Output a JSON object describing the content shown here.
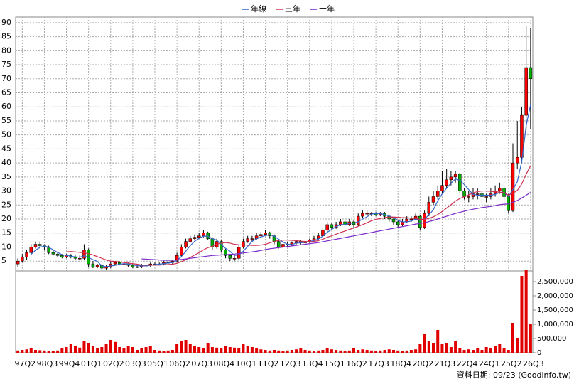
{
  "chart_data": {
    "type": "candlestick",
    "categories": [
      null,
      "97Q2",
      null,
      null,
      null,
      null,
      "98Q3",
      null,
      null,
      null,
      null,
      "99Q4",
      null,
      null,
      null,
      null,
      "01Q1",
      null,
      null,
      null,
      null,
      "02Q2",
      null,
      null,
      null,
      null,
      "03Q3",
      null,
      null,
      null,
      null,
      "05Q1",
      null,
      null,
      null,
      null,
      "06Q2",
      null,
      null,
      null,
      null,
      "07Q3",
      null,
      null,
      null,
      null,
      "08Q4",
      null,
      null,
      null,
      null,
      "10Q1",
      null,
      null,
      null,
      null,
      "11Q2",
      null,
      null,
      null,
      null,
      "12Q3",
      null,
      null,
      null,
      null,
      "13Q4",
      null,
      null,
      null,
      null,
      "15Q1",
      null,
      null,
      null,
      null,
      "16Q2",
      null,
      null,
      null,
      null,
      "17Q3",
      null,
      null,
      null,
      null,
      "18Q4",
      null,
      null,
      null,
      null,
      "20Q2",
      null,
      null,
      null,
      null,
      "21Q3",
      null,
      null,
      null,
      null,
      "22Q4",
      null,
      null,
      null,
      null,
      "24Q1",
      null,
      null,
      null,
      null,
      "25Q2",
      null,
      null,
      null,
      null,
      "26Q3"
    ],
    "open": [
      4,
      5,
      6.5,
      8,
      10,
      11,
      10.5,
      10,
      8,
      7.5,
      7,
      6.5,
      7,
      6.5,
      6,
      6,
      9,
      4,
      3,
      3.5,
      2.5,
      3,
      4,
      4.5,
      4,
      4,
      3.5,
      3,
      3,
      3.5,
      3.5,
      4,
      4,
      4,
      4.5,
      4.5,
      5,
      7,
      10,
      12,
      13,
      13.5,
      14,
      15,
      13,
      10,
      12,
      9,
      7,
      6,
      6,
      10,
      12,
      13,
      13,
      14,
      14.5,
      15,
      14,
      12,
      10,
      11,
      11,
      11.5,
      12,
      11.5,
      12,
      12.5,
      13,
      14,
      16,
      18,
      17,
      18,
      19,
      18,
      19,
      18,
      21,
      22,
      22,
      22,
      21.5,
      22,
      21,
      20,
      19,
      18,
      19,
      20,
      20,
      21,
      17,
      22,
      26,
      28,
      30,
      32,
      34,
      35,
      36,
      30,
      28,
      28,
      29,
      29,
      28,
      28,
      29,
      30,
      31,
      28,
      23,
      40,
      42,
      57,
      74
    ],
    "high": [
      6,
      7.5,
      9,
      11,
      12,
      12,
      11,
      10.5,
      9,
      8,
      7.5,
      7.5,
      7.5,
      7,
      7,
      11,
      9.5,
      5,
      4,
      4,
      3.5,
      5,
      5,
      5,
      4.5,
      4.5,
      4,
      3.5,
      4,
      4,
      4.5,
      4.5,
      4.5,
      5,
      5,
      5.5,
      8,
      11,
      13,
      14,
      14.5,
      15,
      16,
      15.5,
      13.5,
      13,
      12.5,
      9.5,
      7.5,
      7,
      11,
      13,
      14,
      14,
      15,
      15.5,
      16,
      15.5,
      14.5,
      12.5,
      12,
      12,
      12,
      12.5,
      12.5,
      12.5,
      13,
      14,
      15,
      17,
      19,
      18.5,
      19,
      20,
      19.5,
      20,
      19.5,
      22,
      23,
      23,
      22.5,
      22.5,
      22.5,
      22.5,
      21.5,
      20.5,
      19.5,
      20,
      21,
      21,
      22,
      21.5,
      23,
      28,
      30,
      32,
      37,
      38,
      37,
      37,
      36.5,
      31,
      30,
      31,
      31,
      30,
      29,
      31,
      32,
      33,
      32,
      29,
      47,
      55,
      60,
      89,
      88
    ],
    "low": [
      3,
      4.5,
      5.5,
      7.5,
      9.5,
      9.5,
      9,
      7.5,
      7,
      6.5,
      6,
      6,
      6,
      5.5,
      5.5,
      5.5,
      3,
      2.5,
      2.5,
      2,
      2,
      2.5,
      3.5,
      3.5,
      3.5,
      3,
      2.5,
      2.5,
      2.5,
      3,
      3,
      3.5,
      3.5,
      3.5,
      4,
      4,
      4.5,
      6.5,
      9.5,
      11.5,
      12.5,
      13,
      13.5,
      12.5,
      9,
      9.5,
      8,
      6,
      5,
      5,
      5.5,
      9.5,
      11.5,
      12,
      12.5,
      13.5,
      14,
      13,
      11,
      9.5,
      9.5,
      10,
      10.5,
      11,
      11,
      11,
      11.5,
      12,
      12.5,
      13.5,
      15.5,
      16,
      16.5,
      17.5,
      17,
      17.5,
      17,
      17.5,
      20.5,
      21,
      21,
      21,
      21,
      20,
      19,
      18,
      17,
      17.5,
      18.5,
      19,
      19.5,
      16,
      16.5,
      21,
      25,
      27,
      29,
      31,
      32,
      33,
      29,
      27,
      26,
      27,
      27,
      26,
      26,
      27,
      28,
      29,
      25,
      22,
      22.5,
      38,
      40,
      52,
      52
    ],
    "close": [
      5,
      6.5,
      8,
      10,
      11,
      10.5,
      10,
      8,
      7.5,
      7,
      6.5,
      7,
      6.5,
      6,
      6,
      9,
      4,
      3,
      3.5,
      2.5,
      3,
      4,
      4.5,
      4,
      4,
      3.5,
      3,
      3,
      3.5,
      3.5,
      4,
      4,
      4,
      4.5,
      4.5,
      5,
      7,
      10,
      12,
      13,
      13.5,
      14,
      15,
      13,
      10,
      12,
      9,
      7,
      6,
      6,
      10,
      12,
      13,
      13,
      14,
      14.5,
      15,
      14,
      12,
      10,
      11,
      11,
      11.5,
      12,
      11.5,
      12,
      12.5,
      13,
      14,
      16,
      18,
      17,
      18,
      19,
      18,
      19,
      18,
      21,
      22,
      22,
      22,
      21.5,
      22,
      21,
      20,
      19,
      18,
      19,
      20,
      20,
      21,
      17,
      22,
      26,
      28,
      30,
      32,
      34,
      35,
      36,
      30,
      28,
      28,
      29,
      29,
      28,
      28,
      29,
      30,
      31,
      28,
      23,
      40,
      42,
      57,
      74,
      70
    ],
    "volume": [
      80000,
      100000,
      120000,
      150000,
      100000,
      90000,
      80000,
      70000,
      60000,
      80000,
      150000,
      200000,
      300000,
      250000,
      180000,
      400000,
      350000,
      250000,
      150000,
      200000,
      300000,
      450000,
      380000,
      200000,
      150000,
      250000,
      200000,
      100000,
      150000,
      200000,
      250000,
      100000,
      80000,
      60000,
      80000,
      100000,
      300000,
      400000,
      450000,
      300000,
      250000,
      200000,
      150000,
      350000,
      200000,
      180000,
      150000,
      250000,
      200000,
      180000,
      150000,
      300000,
      250000,
      200000,
      150000,
      120000,
      100000,
      80000,
      100000,
      80000,
      60000,
      80000,
      100000,
      120000,
      150000,
      100000,
      80000,
      60000,
      80000,
      100000,
      150000,
      120000,
      100000,
      80000,
      60000,
      80000,
      150000,
      100000,
      120000,
      100000,
      80000,
      60000,
      80000,
      100000,
      120000,
      100000,
      80000,
      60000,
      80000,
      100000,
      120000,
      300000,
      650000,
      400000,
      350000,
      800000,
      300000,
      350000,
      200000,
      400000,
      150000,
      100000,
      120000,
      100000,
      150000,
      100000,
      200000,
      150000,
      250000,
      300000,
      150000,
      100000,
      1050000,
      500000,
      2700000,
      2900000,
      1000000
    ],
    "up_color": "#ff0000",
    "down_color": "#00b000",
    "volume_color": "#e00000",
    "series": [
      {
        "name": "年線",
        "color": "#3366cc",
        "values": [
          null,
          null,
          null,
          7.4,
          8.9,
          9.9,
          10.4,
          9.9,
          9,
          8.1,
          7.3,
          7,
          6.8,
          6.5,
          6.4,
          6.9,
          6.3,
          5.5,
          4.9,
          3.3,
          3,
          3.3,
          3.5,
          3.9,
          4.1,
          4,
          3.6,
          3.4,
          3.3,
          3.3,
          3.5,
          3.8,
          3.9,
          4.1,
          4.3,
          4.5,
          5.3,
          6.6,
          8.5,
          10.5,
          12.1,
          13.1,
          13.9,
          13.9,
          13,
          12.5,
          11,
          9.5,
          8.5,
          7,
          7.3,
          8.5,
          10.3,
          12,
          13,
          13.6,
          14.1,
          14.4,
          13.9,
          12.8,
          11.8,
          11,
          10.9,
          11.4,
          11.5,
          11.8,
          12,
          12.3,
          12.9,
          13.9,
          15.3,
          16.3,
          17.3,
          18,
          18,
          18.5,
          18.5,
          19,
          20,
          20.8,
          21.8,
          21.9,
          21.9,
          21.6,
          21.1,
          20.5,
          19.5,
          19,
          19,
          19.3,
          20,
          19.5,
          20,
          21.5,
          23.3,
          26.5,
          29,
          31,
          32.8,
          34.3,
          33.8,
          32.3,
          30.5,
          28.8,
          28.5,
          28.5,
          28.5,
          28.5,
          28.8,
          29.5,
          29.5,
          28,
          30.5,
          33.3,
          40.5,
          53.3,
          60.8
        ]
      },
      {
        "name": "三年",
        "color": "#d03050",
        "values": [
          null,
          null,
          null,
          null,
          null,
          null,
          null,
          null,
          null,
          null,
          null,
          8.3,
          8.4,
          8.3,
          8.1,
          8,
          7.6,
          7.2,
          6.6,
          6,
          5.4,
          5,
          4.9,
          4.7,
          4.5,
          4.3,
          4.1,
          3.9,
          3.6,
          3.6,
          3.6,
          3.6,
          3.6,
          3.7,
          3.8,
          3.9,
          4.2,
          4.8,
          5.5,
          6.3,
          7.2,
          8,
          9,
          9.8,
          10.3,
          11,
          11.4,
          11.6,
          11.4,
          11,
          10.8,
          10.7,
          10.7,
          10.6,
          10.6,
          10.7,
          11,
          11.5,
          12,
          12.4,
          12.5,
          12.5,
          12.4,
          12.3,
          12.1,
          12,
          11.9,
          12,
          12.3,
          12.8,
          13.5,
          14,
          14.6,
          15.2,
          15.7,
          16.3,
          16.8,
          17.4,
          18,
          18.7,
          19.4,
          19.9,
          20.2,
          20.5,
          20.7,
          20.7,
          20.6,
          20.5,
          20.5,
          20.3,
          20.2,
          19.9,
          19.9,
          20.2,
          20.8,
          21.6,
          22.7,
          23.9,
          25.1,
          26.4,
          27.3,
          28,
          28.6,
          29.3,
          29.8,
          30,
          30,
          29.9,
          29.7,
          29.6,
          29.4,
          28.5,
          29.2,
          30.2,
          32.5,
          36,
          39
        ]
      },
      {
        "name": "十年",
        "color": "#7a28c8",
        "values": [
          null,
          null,
          null,
          null,
          null,
          null,
          null,
          null,
          null,
          null,
          null,
          null,
          null,
          null,
          null,
          null,
          null,
          null,
          null,
          null,
          null,
          null,
          null,
          null,
          null,
          null,
          null,
          null,
          5.8,
          5.7,
          5.6,
          5.5,
          5.4,
          5.3,
          5.3,
          5.3,
          5.4,
          5.6,
          5.8,
          6,
          6.2,
          6.4,
          6.6,
          6.8,
          7,
          7.1,
          7.2,
          7.3,
          7.4,
          7.5,
          7.7,
          7.9,
          8.1,
          8.3,
          8.5,
          8.8,
          9.1,
          9.4,
          9.6,
          9.8,
          10,
          10.2,
          10.4,
          10.6,
          10.8,
          11,
          11.2,
          11.4,
          11.6,
          11.9,
          12.2,
          12.5,
          12.8,
          13.1,
          13.4,
          13.7,
          14,
          14.3,
          14.6,
          14.9,
          15.2,
          15.5,
          15.8,
          16.1,
          16.4,
          16.7,
          17,
          17.3,
          17.6,
          17.9,
          18.2,
          18.4,
          18.7,
          19.1,
          19.5,
          20,
          20.5,
          21,
          21.5,
          22,
          22.4,
          22.8,
          23.2,
          23.5,
          23.8,
          24.1,
          24.3,
          24.5,
          24.8,
          25.1,
          25.3,
          25.4,
          26,
          26.6,
          27.5,
          28.5,
          29.5
        ]
      }
    ],
    "ylim": [
      1.5,
      92
    ],
    "yticks": [
      5,
      10,
      15,
      20,
      25,
      30,
      35,
      40,
      45,
      50,
      55,
      60,
      65,
      70,
      75,
      80,
      85,
      90
    ],
    "y2lim": [
      0,
      2900000
    ],
    "y2ticks": [
      0,
      {
        "value": 500000,
        "label": "500,000"
      },
      {
        "value": 1000000,
        "label": "1,000,000"
      },
      {
        "value": 1500000,
        "label": "1,500,000"
      },
      {
        "value": 2000000,
        "label": "2,000,000"
      },
      {
        "value": 2500000,
        "label": "2,500,000"
      }
    ],
    "grid": true,
    "legend": "top",
    "footnote": "資料日期: 09/23 (Goodinfo.tw)"
  }
}
